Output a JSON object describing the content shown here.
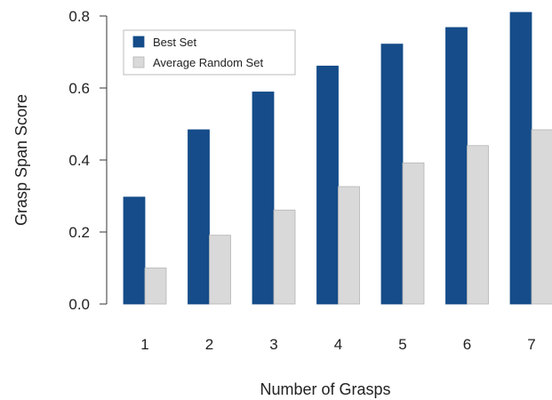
{
  "chart_data": {
    "type": "bar",
    "title": "",
    "xlabel": "Number of Grasps",
    "ylabel": "Grasp Span Score",
    "categories": [
      "1",
      "2",
      "3",
      "4",
      "5",
      "6",
      "7"
    ],
    "series": [
      {
        "name": "Best Set",
        "color": "#154c89",
        "values": [
          0.297,
          0.484,
          0.589,
          0.661,
          0.722,
          0.768,
          0.81
        ]
      },
      {
        "name": "Average Random Set",
        "color": "#d9d9d9",
        "values": [
          0.1,
          0.191,
          0.261,
          0.326,
          0.392,
          0.44,
          0.484
        ]
      }
    ],
    "ylim": [
      0,
      0.8
    ],
    "yticks": [
      "0.0",
      "0.2",
      "0.4",
      "0.6",
      "0.8"
    ],
    "grid": false,
    "legend_position": "top-left"
  }
}
